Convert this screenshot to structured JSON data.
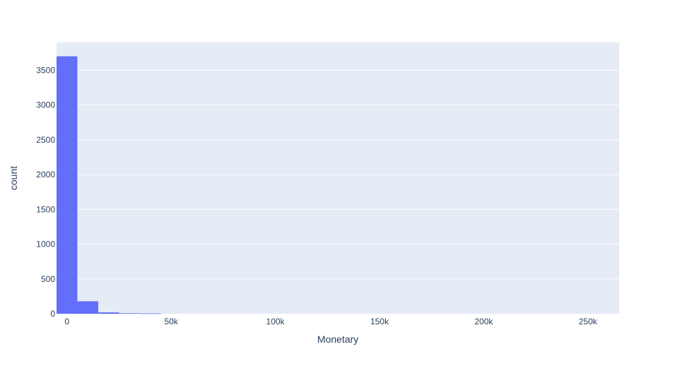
{
  "chart_data": {
    "type": "bar",
    "subtype": "histogram",
    "xlabel": "Monetary",
    "ylabel": "count",
    "x_ticks": [
      {
        "value": 0,
        "label": "0"
      },
      {
        "value": 50000,
        "label": "50k"
      },
      {
        "value": 100000,
        "label": "100k"
      },
      {
        "value": 150000,
        "label": "150k"
      },
      {
        "value": 200000,
        "label": "200k"
      },
      {
        "value": 250000,
        "label": "250k"
      }
    ],
    "y_ticks": [
      {
        "value": 0,
        "label": "0"
      },
      {
        "value": 500,
        "label": "500"
      },
      {
        "value": 1000,
        "label": "1000"
      },
      {
        "value": 1500,
        "label": "1500"
      },
      {
        "value": 2000,
        "label": "2000"
      },
      {
        "value": 2500,
        "label": "2500"
      },
      {
        "value": 3000,
        "label": "3000"
      },
      {
        "value": 3500,
        "label": "3500"
      }
    ],
    "xlim": [
      -5000,
      265000
    ],
    "ylim": [
      0,
      3900
    ],
    "bin_width": 10000,
    "bins": [
      {
        "x0": -5000,
        "x1": 5000,
        "count": 3700
      },
      {
        "x0": 5000,
        "x1": 15000,
        "count": 180
      },
      {
        "x0": 15000,
        "x1": 25000,
        "count": 20
      },
      {
        "x0": 25000,
        "x1": 35000,
        "count": 8
      },
      {
        "x0": 35000,
        "x1": 45000,
        "count": 5
      }
    ],
    "grid": true,
    "colors": {
      "bar": "#636efa",
      "plot_bg": "#e5ecf6",
      "grid": "#ffffff",
      "text": "#2a3f5f"
    }
  }
}
